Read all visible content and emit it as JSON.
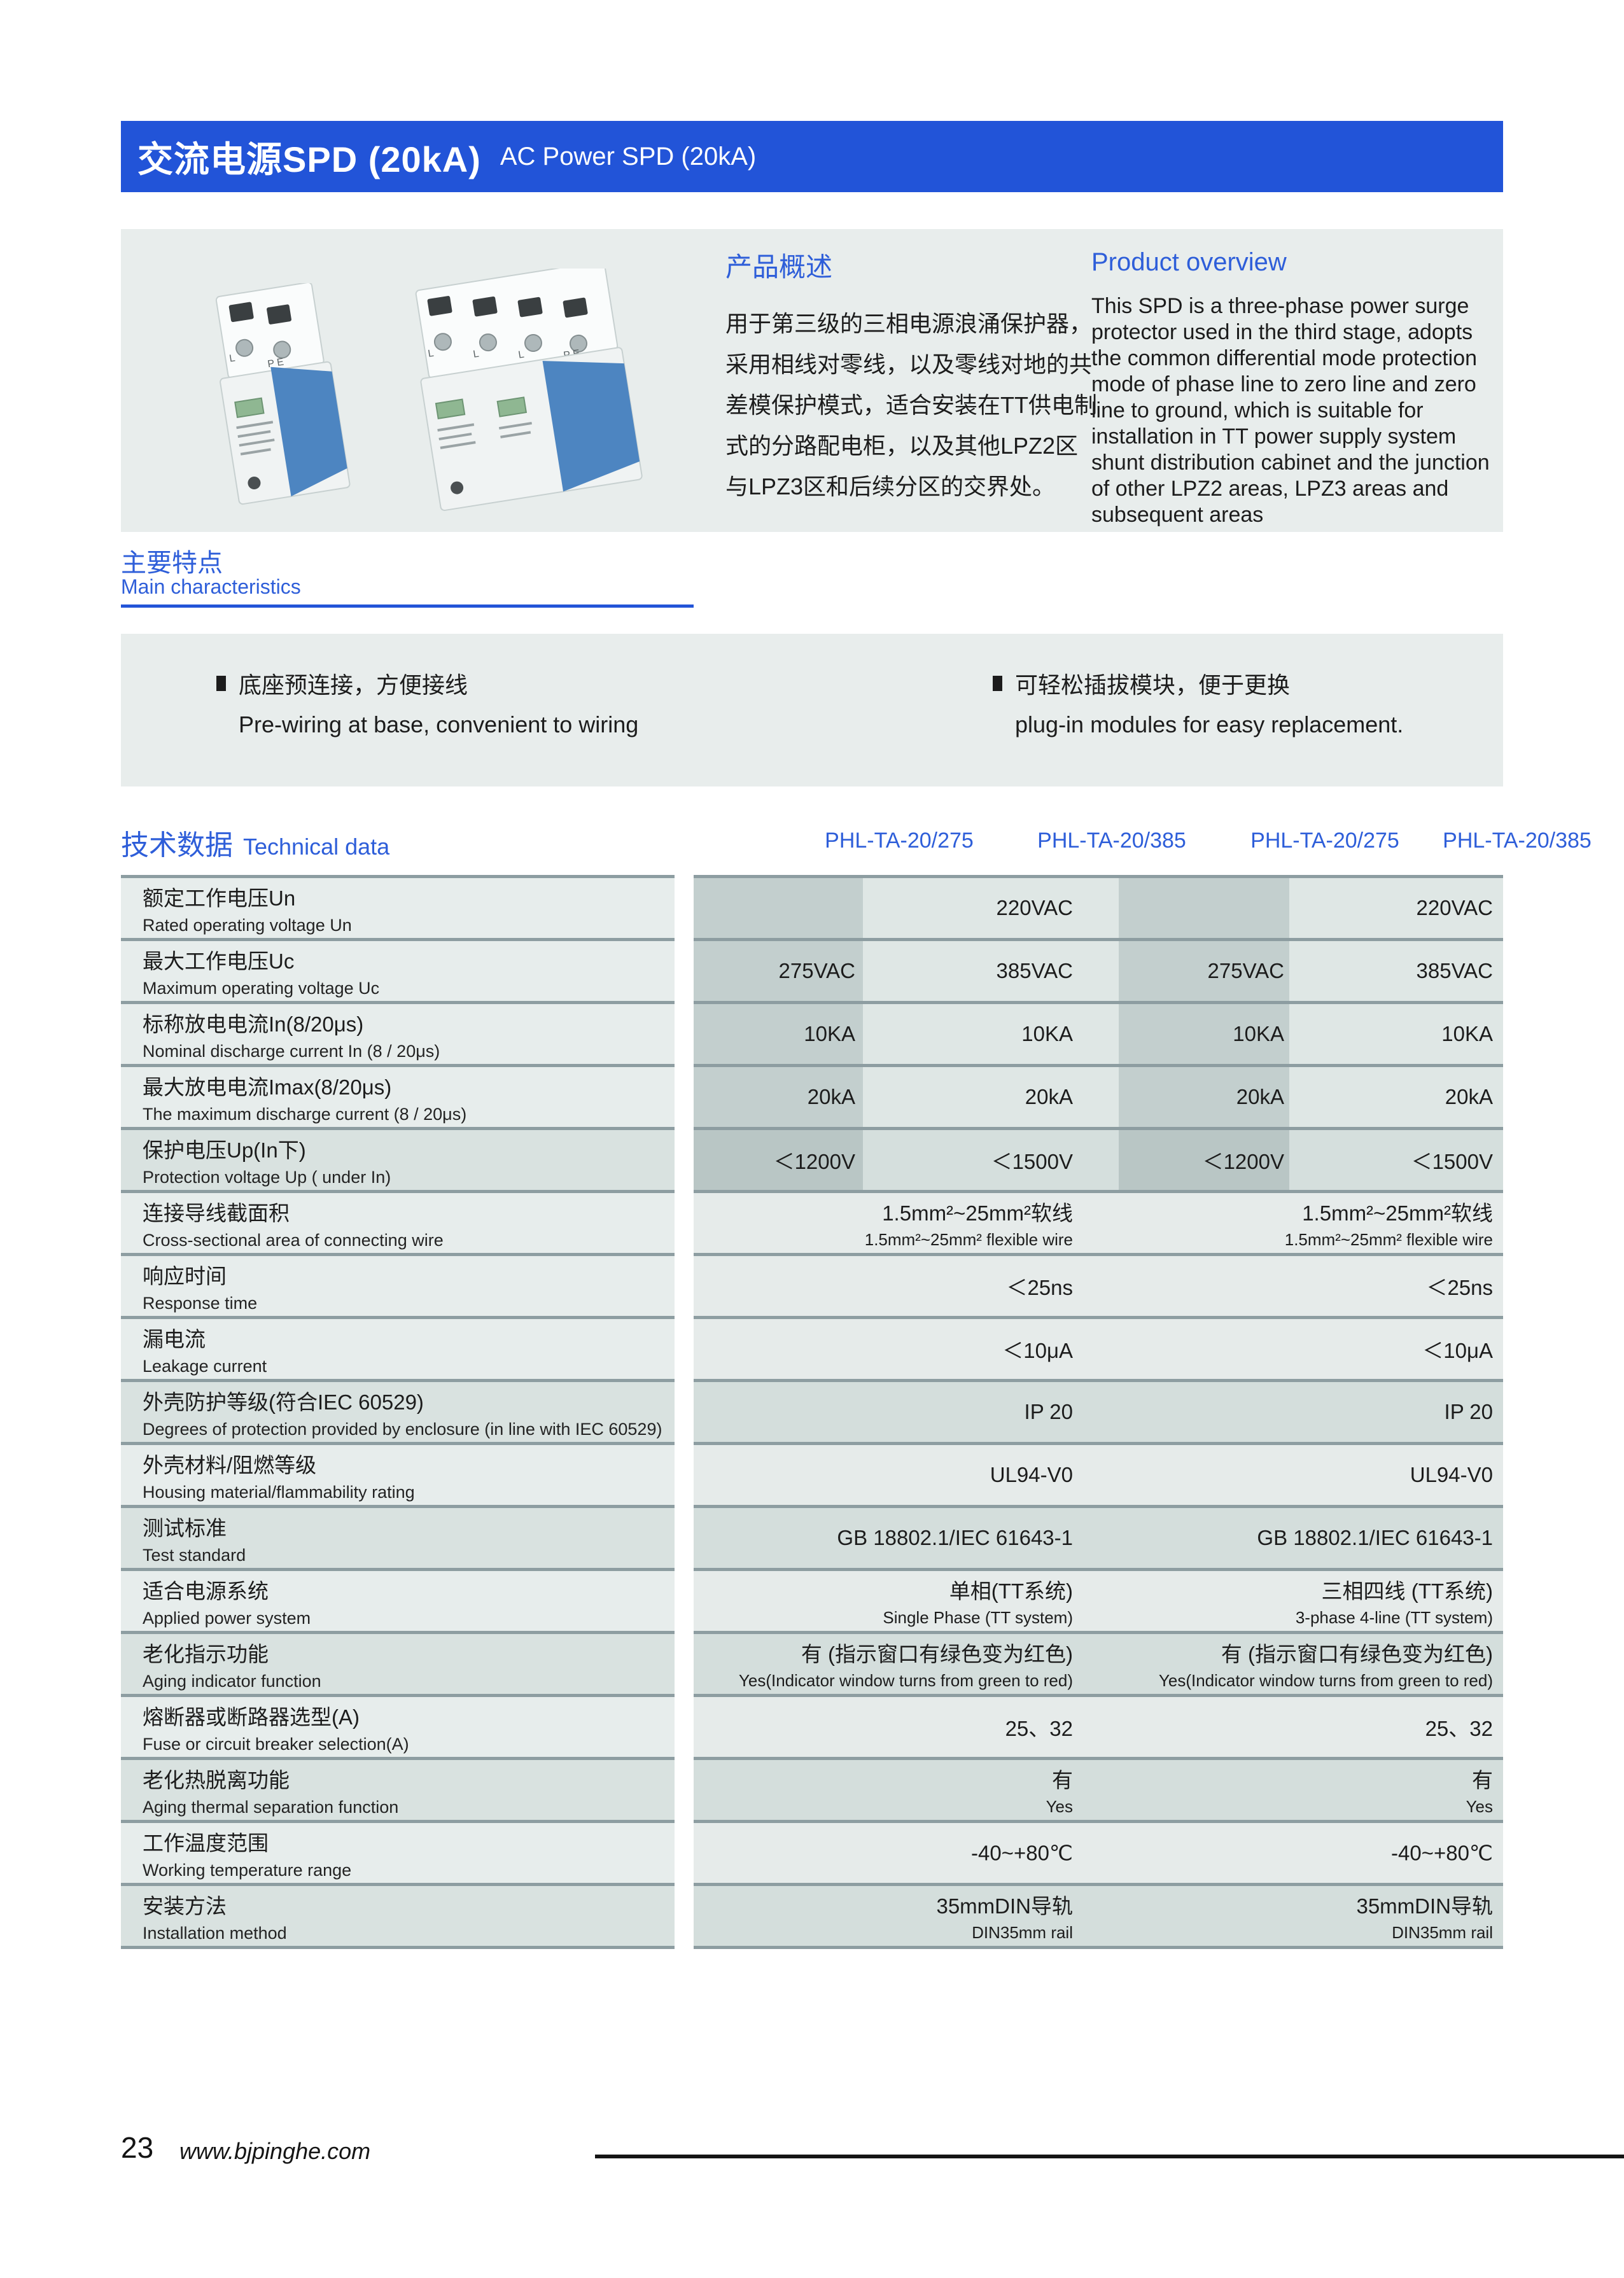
{
  "header": {
    "title_zh": "交流电源SPD (20kA)",
    "title_en": "AC Power SPD (20kA)"
  },
  "overview": {
    "zh_title": "产品概述",
    "zh_body": "用于第三级的三相电源浪涌保护器，采用相线对零线，以及零线对地的共差模保护模式，适合安装在TT供电制式的分路配电柜，以及其他LPZ2区与LPZ3区和后续分区的交界处。",
    "en_title": "Product overview",
    "en_body": "This SPD is a three-phase power surge protector used in the third stage, adopts the common differential mode protection mode of phase line to zero line and zero line to ground, which is suitable for installation in TT power supply system shunt distribution cabinet and the junction of other LPZ2 areas, LPZ3 areas and subsequent areas"
  },
  "features": {
    "title_zh": "主要特点",
    "title_en": "Main characteristics",
    "items": [
      {
        "zh": "底座预连接，方便接线",
        "en": "Pre-wiring at base, convenient to wiring"
      },
      {
        "zh": "可轻松插拔模块，便于更换",
        "en": "plug-in modules for easy replacement."
      }
    ]
  },
  "tech": {
    "title_zh": "技术数据",
    "title_en": "Technical data",
    "models": [
      "PHL-TA-20/275",
      "PHL-TA-20/385",
      "PHL-TA-20/275",
      "PHL-TA-20/385"
    ],
    "rows": [
      {
        "zh": "额定工作电压Un",
        "en": "Rated operating voltage Un",
        "shade": "light",
        "striped": true,
        "cells": [
          {
            "col": "1-2",
            "main": "220VAC"
          },
          {
            "col": "3-4",
            "main": "220VAC"
          }
        ]
      },
      {
        "zh": "最大工作电压Uc",
        "en": "Maximum operating voltage Uc",
        "shade": "light",
        "striped": true,
        "cells": [
          {
            "col": "1",
            "main": "275VAC"
          },
          {
            "col": "2",
            "main": "385VAC"
          },
          {
            "col": "3",
            "main": "275VAC"
          },
          {
            "col": "4",
            "main": "385VAC"
          }
        ]
      },
      {
        "zh": "标称放电电流In(8/20μs)",
        "en": "Nominal discharge current In (8 / 20μs)",
        "shade": "light",
        "striped": true,
        "cells": [
          {
            "col": "1",
            "main": "10KA"
          },
          {
            "col": "2",
            "main": "10KA"
          },
          {
            "col": "3",
            "main": "10KA"
          },
          {
            "col": "4",
            "main": "10KA"
          }
        ]
      },
      {
        "zh": "最大放电电流Imax(8/20μs)",
        "en": "The maximum discharge current (8 / 20μs)",
        "shade": "light",
        "striped": true,
        "cells": [
          {
            "col": "1",
            "main": "20kA"
          },
          {
            "col": "2",
            "main": "20kA"
          },
          {
            "col": "3",
            "main": "20kA"
          },
          {
            "col": "4",
            "main": "20kA"
          }
        ]
      },
      {
        "zh": "保护电压Up(In下)",
        "en": "Protection voltage Up ( under In)",
        "shade": "dark",
        "striped": true,
        "cells": [
          {
            "col": "1",
            "main": "＜1200V"
          },
          {
            "col": "2",
            "main": "＜1500V"
          },
          {
            "col": "3",
            "main": "＜1200V"
          },
          {
            "col": "4",
            "main": "＜1500V"
          }
        ]
      },
      {
        "zh": "连接导线截面积",
        "en": "Cross-sectional area of connecting wire",
        "shade": "light",
        "cells": [
          {
            "col": "1-2",
            "main": "1.5mm²~25mm²软线",
            "sub": "1.5mm²~25mm² flexible wire"
          },
          {
            "col": "3-4",
            "main": "1.5mm²~25mm²软线",
            "sub": "1.5mm²~25mm² flexible wire"
          }
        ]
      },
      {
        "zh": "响应时间",
        "en": "Response time",
        "shade": "light",
        "cells": [
          {
            "col": "1-2",
            "main": "＜25ns"
          },
          {
            "col": "3-4",
            "main": "＜25ns"
          }
        ]
      },
      {
        "zh": "漏电流",
        "en": "Leakage current",
        "shade": "light",
        "cells": [
          {
            "col": "1-2",
            "main": "＜10μA"
          },
          {
            "col": "3-4",
            "main": "＜10μA"
          }
        ]
      },
      {
        "zh": "外壳防护等级(符合IEC 60529)",
        "en": "Degrees of protection provided by enclosure (in line with IEC 60529)",
        "shade": "dark",
        "cells": [
          {
            "col": "1-2",
            "main": "IP 20"
          },
          {
            "col": "3-4",
            "main": "IP 20"
          }
        ]
      },
      {
        "zh": "外壳材料/阻燃等级",
        "en": "Housing material/flammability rating",
        "shade": "light",
        "cells": [
          {
            "col": "1-2",
            "main": "UL94-V0"
          },
          {
            "col": "3-4",
            "main": "UL94-V0"
          }
        ]
      },
      {
        "zh": "测试标准",
        "en": "Test standard",
        "shade": "dark",
        "cells": [
          {
            "col": "1-2",
            "main": "GB 18802.1/IEC 61643-1"
          },
          {
            "col": "3-4",
            "main": "GB 18802.1/IEC 61643-1"
          }
        ]
      },
      {
        "zh": "适合电源系统",
        "en": "Applied power system",
        "shade": "light",
        "cells": [
          {
            "col": "1-2",
            "main": "单相(TT系统)",
            "sub": "Single Phase (TT system)"
          },
          {
            "col": "3-4",
            "main": "三相四线 (TT系统)",
            "sub": "3-phase 4-line (TT system)"
          }
        ]
      },
      {
        "zh": "老化指示功能",
        "en": "Aging indicator function",
        "shade": "dark",
        "cells": [
          {
            "col": "1-2",
            "main": "有 (指示窗口有绿色变为红色)",
            "sub": "Yes(Indicator window turns from green to red)"
          },
          {
            "col": "3-4",
            "main": "有 (指示窗口有绿色变为红色)",
            "sub": "Yes(Indicator window turns from green to red)"
          }
        ]
      },
      {
        "zh": "熔断器或断路器选型(A)",
        "en": "Fuse or circuit breaker selection(A)",
        "shade": "light",
        "cells": [
          {
            "col": "1-2",
            "main": "25、32"
          },
          {
            "col": "3-4",
            "main": "25、32"
          }
        ]
      },
      {
        "zh": "老化热脱离功能",
        "en": "Aging thermal separation function",
        "shade": "dark",
        "cells": [
          {
            "col": "1-2",
            "main": "有",
            "sub": "Yes"
          },
          {
            "col": "3-4",
            "main": "有",
            "sub": "Yes"
          }
        ]
      },
      {
        "zh": "工作温度范围",
        "en": "Working temperature range",
        "shade": "light",
        "cells": [
          {
            "col": "1-2",
            "main": "-40~+80℃"
          },
          {
            "col": "3-4",
            "main": "-40~+80℃"
          }
        ]
      },
      {
        "zh": "安装方法",
        "en": "Installation method",
        "shade": "dark",
        "cells": [
          {
            "col": "1-2",
            "main": "35mmDIN导轨",
            "sub": "DIN35mm rail"
          },
          {
            "col": "3-4",
            "main": "35mmDIN导轨",
            "sub": "DIN35mm rail"
          }
        ]
      }
    ]
  },
  "footer": {
    "page_number": "23",
    "website": "www.bjpinghe.com"
  },
  "colors": {
    "brand_blue_bar": "#2254d8",
    "heading_blue": "#2e5ed9",
    "band_gray": "#e8edec",
    "stripe_dark": "#c3cfce",
    "stripe_light": "#dfe7e5",
    "row_dark": "#d4dedc",
    "separator": "#8d9da1",
    "module_blue": "#4d85c1",
    "indicator_green": "#8fb792"
  }
}
